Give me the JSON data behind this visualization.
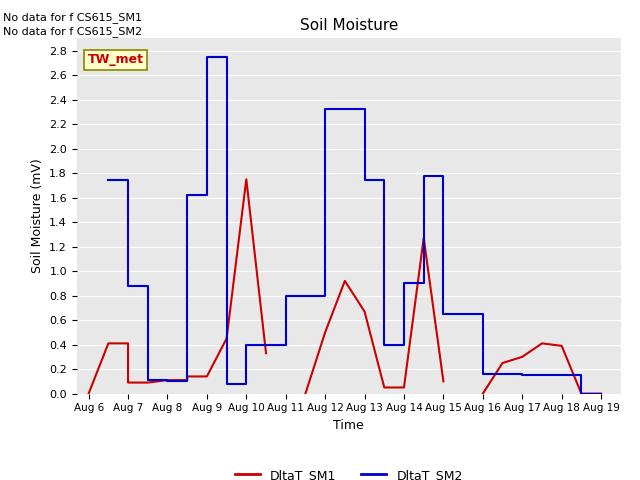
{
  "title": "Soil Moisture",
  "xlabel": "Time",
  "ylabel": "Soil Moisture (mV)",
  "ylim": [
    0.0,
    2.9
  ],
  "yticks": [
    0.0,
    0.2,
    0.4,
    0.6,
    0.8,
    1.0,
    1.2,
    1.4,
    1.6,
    1.8,
    2.0,
    2.2,
    2.4,
    2.6,
    2.8
  ],
  "background_color": "#e8e8e8",
  "no_data_text": [
    "No data for f CS615_SM1",
    "No data for f CS615_SM2"
  ],
  "station_label": "TW_met",
  "xtick_labels": [
    "Aug 6",
    "Aug 7",
    "Aug 8",
    "Aug 9",
    "Aug 10",
    "Aug 11",
    "Aug 12",
    "Aug 13",
    "Aug 14",
    "Aug 15",
    "Aug 16",
    "Aug 17",
    "Aug 18",
    "Aug 19"
  ],
  "x_positions": [
    0,
    1,
    2,
    3,
    4,
    5,
    6,
    7,
    8,
    9,
    10,
    11,
    12,
    13
  ],
  "sm1_x": [
    0.0,
    0.5,
    0.5,
    1.0,
    1.0,
    1.5,
    1.5,
    2.0,
    2.0,
    2.5,
    2.5,
    3.0,
    3.0,
    3.5,
    3.5,
    4.0,
    4.0,
    4.5,
    null,
    5.5,
    5.5,
    6.0,
    6.0,
    6.5,
    6.5,
    7.0,
    7.0,
    7.5,
    7.5,
    8.0,
    8.0,
    8.5,
    8.5,
    9.0,
    null,
    10.0,
    10.0,
    10.5,
    10.5,
    11.0,
    11.0,
    11.5,
    11.5,
    12.0,
    12.0,
    12.5,
    12.5,
    13.0
  ],
  "sm1_y": [
    0.0,
    0.41,
    0.41,
    0.41,
    0.09,
    0.09,
    0.09,
    0.11,
    0.11,
    0.11,
    0.14,
    0.14,
    0.14,
    0.45,
    0.45,
    1.75,
    1.75,
    0.33,
    null,
    0.0,
    0.0,
    0.5,
    0.5,
    0.92,
    0.92,
    0.67,
    0.67,
    0.05,
    0.05,
    0.05,
    0.05,
    1.27,
    1.27,
    0.1,
    null,
    0.0,
    0.0,
    0.25,
    0.25,
    0.3,
    0.3,
    0.41,
    0.41,
    0.39,
    0.39,
    0.0,
    0.0,
    0.0
  ],
  "sm2_x": [
    0.5,
    0.5,
    1.0,
    1.0,
    1.5,
    1.5,
    2.0,
    2.0,
    2.5,
    2.5,
    3.0,
    3.0,
    3.5,
    3.5,
    4.0,
    4.0,
    5.0,
    5.0,
    6.0,
    6.0,
    7.0,
    7.0,
    7.5,
    7.5,
    8.0,
    8.0,
    8.5,
    8.5,
    9.0,
    9.0,
    10.0,
    10.0,
    11.0,
    11.0,
    12.0,
    12.0,
    12.5,
    12.5,
    13.0
  ],
  "sm2_y": [
    1.74,
    1.74,
    1.74,
    0.88,
    0.88,
    0.11,
    0.11,
    0.1,
    0.1,
    1.62,
    1.62,
    2.75,
    2.75,
    0.08,
    0.08,
    0.4,
    0.4,
    0.8,
    0.8,
    2.32,
    2.32,
    1.74,
    1.74,
    0.4,
    0.4,
    0.9,
    0.9,
    1.78,
    1.78,
    0.65,
    0.65,
    0.16,
    0.16,
    0.15,
    0.15,
    0.15,
    0.15,
    0.0,
    0.0
  ],
  "sm1_color": "#cc0000",
  "sm2_color": "#0000cc",
  "legend_labels": [
    "DltaT_SM1",
    "DltaT_SM2"
  ]
}
